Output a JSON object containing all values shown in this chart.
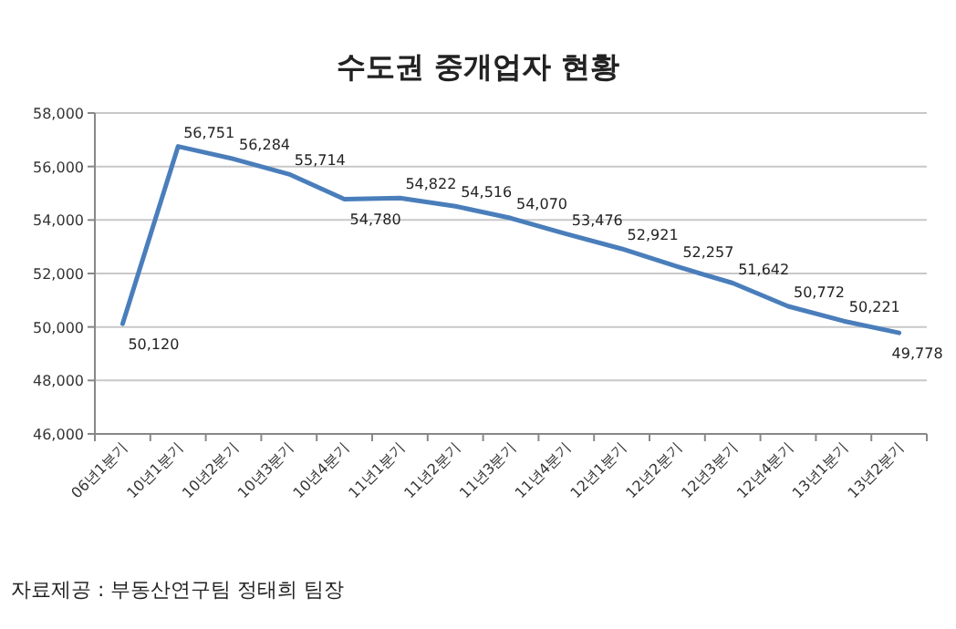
{
  "chart_data": {
    "type": "line",
    "title": "수도권 중개업자 현황",
    "categories": [
      "06년1분기",
      "10년1분기",
      "10년2분기",
      "10년3분기",
      "10년4분기",
      "11년1분기",
      "11년2분기",
      "11년3분기",
      "11년4분기",
      "12년1분기",
      "12년2분기",
      "12년3분기",
      "12년4분기",
      "13년1분기",
      "13년2분기"
    ],
    "series": [
      {
        "color": "#4a7ebb",
        "values": [
          50120,
          56751,
          56284,
          55714,
          54780,
          54822,
          54516,
          54070,
          53476,
          52921,
          52257,
          51642,
          50772,
          50221,
          49778
        ]
      }
    ],
    "value_labels": [
      "50,120",
      "56,751",
      "56,284",
      "55,714",
      "54,780",
      "54,822",
      "54,516",
      "54,070",
      "53,476",
      "52,921",
      "52,257",
      "51,642",
      "50,772",
      "50,221",
      "49,778"
    ],
    "ylim": [
      46000,
      58000
    ],
    "yticks": [
      {
        "value": 46000,
        "label": "46,000"
      },
      {
        "value": 48000,
        "label": "48,000"
      },
      {
        "value": 50000,
        "label": "50,000"
      },
      {
        "value": 52000,
        "label": "52,000"
      },
      {
        "value": 54000,
        "label": "54,000"
      },
      {
        "value": 56000,
        "label": "56,000"
      },
      {
        "value": 58000,
        "label": "58,000"
      }
    ],
    "grid": "y",
    "marker": "none",
    "line_style": "solid",
    "annotations": [
      "자료제공 : 부동산연구팀 정태희 팀장"
    ]
  }
}
